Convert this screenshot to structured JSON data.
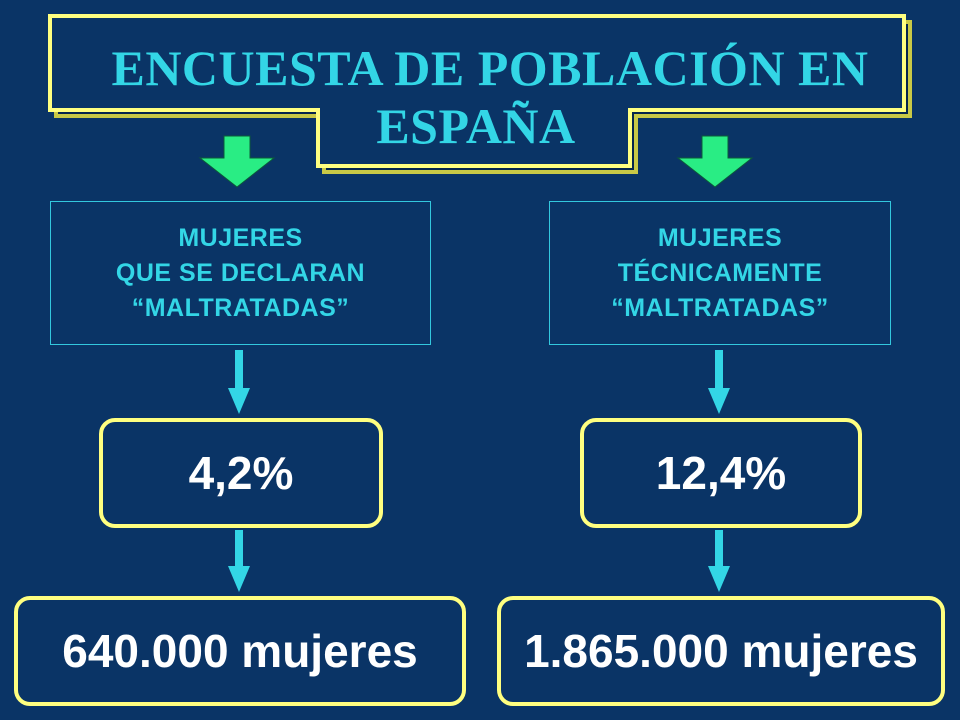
{
  "title": {
    "line1": "ENCUESTA DE POBLACIÓN EN",
    "line2": "ESPAÑA"
  },
  "left": {
    "category": [
      "MUJERES",
      "QUE SE DECLARAN",
      "“MALTRATADAS”"
    ],
    "percentage": "4,2%",
    "count": "640.000 mujeres"
  },
  "right": {
    "category": [
      "MUJERES",
      "TÉCNICAMENTE",
      "“MALTRATADAS”"
    ],
    "percentage": "12,4%",
    "count": "1.865.000 mujeres"
  },
  "colors": {
    "background": "#0a3466",
    "title_text": "#33d6e6",
    "title_border": "#ffff80",
    "category_text": "#33d6e6",
    "category_border": "#33c8de",
    "value_text": "#ffffff",
    "value_border": "#ffff80",
    "down_arrow_fill": "#29ed84",
    "connector_arrow": "#33d6e6"
  }
}
